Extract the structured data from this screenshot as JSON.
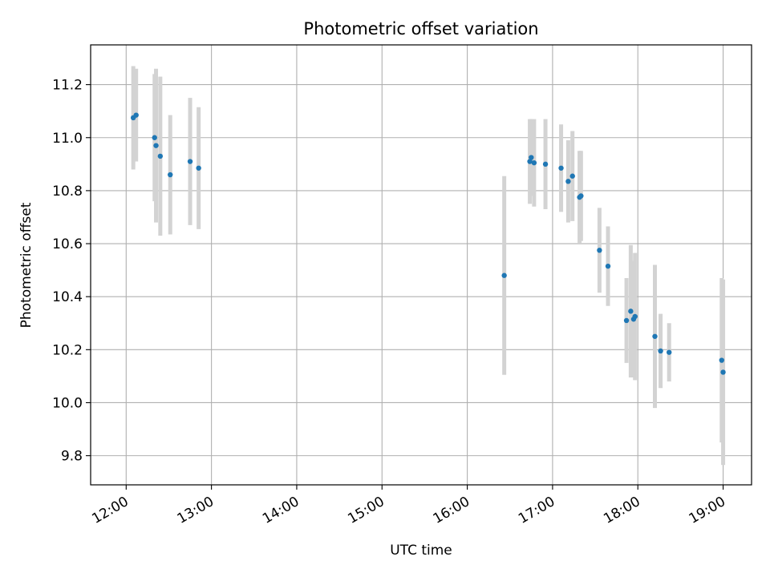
{
  "chart_data": {
    "type": "scatter",
    "title": "Photometric offset variation",
    "xlabel": "UTC time",
    "ylabel": "Photometric offset",
    "xlim": [
      "11:35",
      "19:20"
    ],
    "ylim": [
      9.69,
      11.35
    ],
    "x_ticks": [
      "12:00",
      "13:00",
      "14:00",
      "15:00",
      "16:00",
      "17:00",
      "18:00",
      "19:00"
    ],
    "y_ticks": [
      "9.8",
      "10.0",
      "10.2",
      "10.4",
      "10.6",
      "10.8",
      "11.0",
      "11.2"
    ],
    "grid": true,
    "legend": "none",
    "colors": {
      "points": "#1f77b4",
      "errorbars": "#d3d3d3",
      "grid": "#b0b0b0"
    },
    "series": [
      {
        "points": [
          {
            "x": "12:05",
            "y": 11.075,
            "yerr": 0.195
          },
          {
            "x": "12:07",
            "y": 11.085,
            "yerr": 0.175
          },
          {
            "x": "12:20",
            "y": 11.0,
            "yerr": 0.24
          },
          {
            "x": "12:21",
            "y": 10.97,
            "yerr": 0.29
          },
          {
            "x": "12:24",
            "y": 10.93,
            "yerr": 0.3
          },
          {
            "x": "12:31",
            "y": 10.86,
            "yerr": 0.225
          },
          {
            "x": "12:45",
            "y": 10.91,
            "yerr": 0.24
          },
          {
            "x": "12:51",
            "y": 10.885,
            "yerr": 0.23
          },
          {
            "x": "16:26",
            "y": 10.48,
            "yerr": 0.375
          },
          {
            "x": "16:44",
            "y": 10.91,
            "yerr": 0.16
          },
          {
            "x": "16:45",
            "y": 10.925,
            "yerr": 0.145
          },
          {
            "x": "16:47",
            "y": 10.905,
            "yerr": 0.165
          },
          {
            "x": "16:55",
            "y": 10.9,
            "yerr": 0.17
          },
          {
            "x": "17:06",
            "y": 10.885,
            "yerr": 0.165
          },
          {
            "x": "17:11",
            "y": 10.835,
            "yerr": 0.155
          },
          {
            "x": "17:14",
            "y": 10.855,
            "yerr": 0.17
          },
          {
            "x": "17:19",
            "y": 10.775,
            "yerr": 0.175
          },
          {
            "x": "17:20",
            "y": 10.78,
            "yerr": 0.17
          },
          {
            "x": "17:33",
            "y": 10.575,
            "yerr": 0.16
          },
          {
            "x": "17:39",
            "y": 10.515,
            "yerr": 0.15
          },
          {
            "x": "17:52",
            "y": 10.31,
            "yerr": 0.16
          },
          {
            "x": "17:55",
            "y": 10.345,
            "yerr": 0.25
          },
          {
            "x": "17:57",
            "y": 10.315,
            "yerr": 0.22
          },
          {
            "x": "17:58",
            "y": 10.325,
            "yerr": 0.24
          },
          {
            "x": "18:12",
            "y": 10.25,
            "yerr": 0.27
          },
          {
            "x": "18:16",
            "y": 10.195,
            "yerr": 0.14
          },
          {
            "x": "18:22",
            "y": 10.19,
            "yerr": 0.11
          },
          {
            "x": "18:59",
            "y": 10.16,
            "yerr": 0.31
          },
          {
            "x": "19:00",
            "y": 10.115,
            "yerr": 0.35
          }
        ]
      }
    ]
  }
}
